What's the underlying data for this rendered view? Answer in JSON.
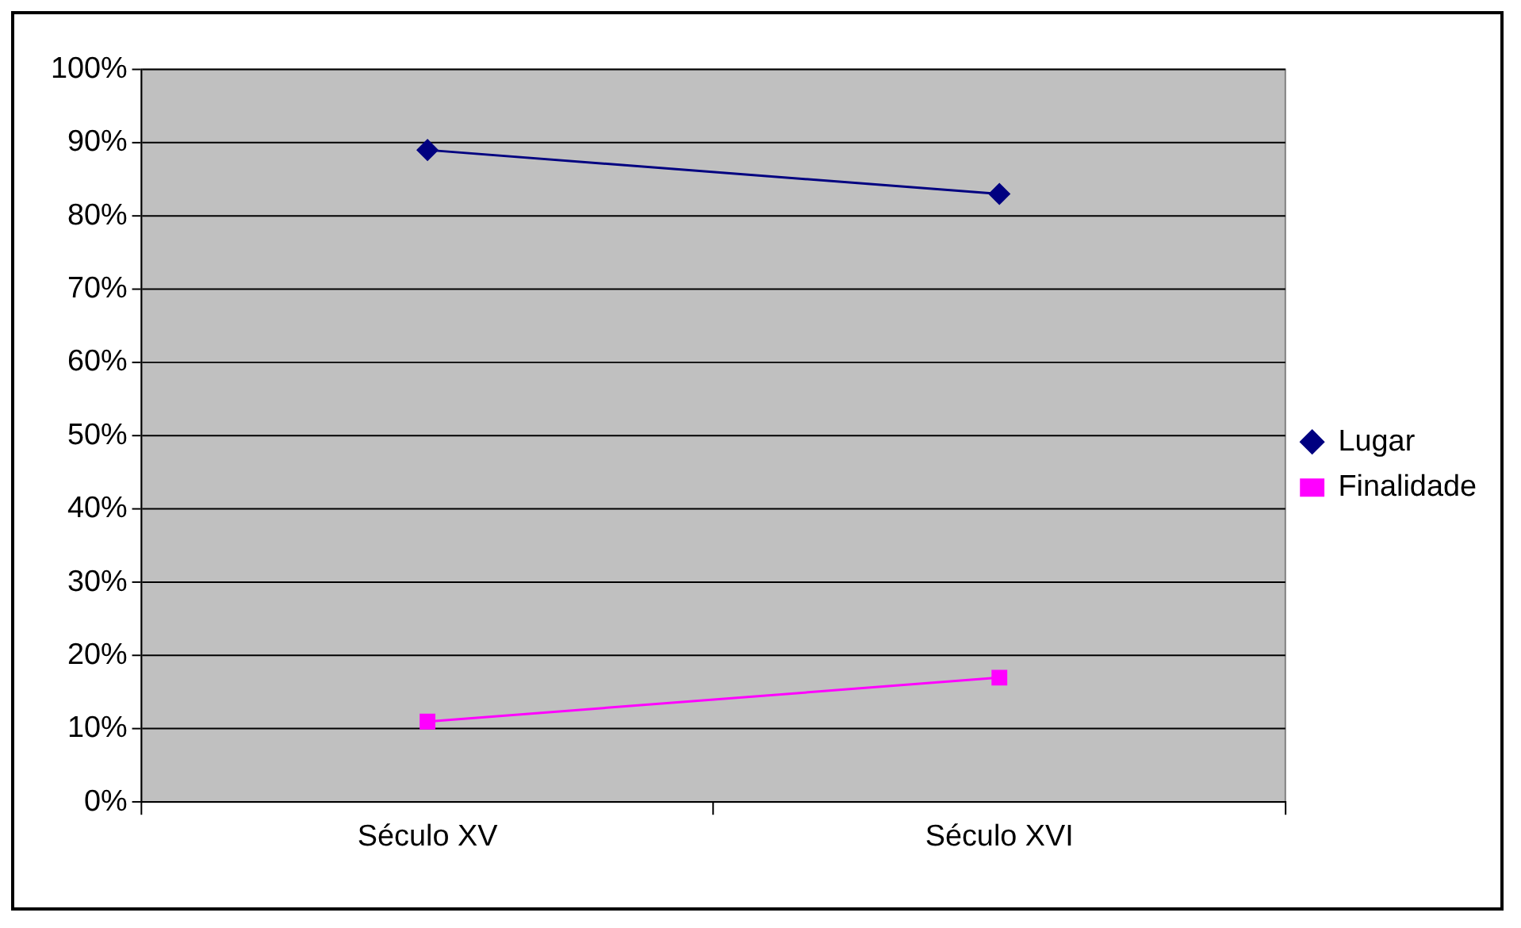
{
  "chart_data": {
    "type": "line",
    "categories": [
      "Século XV",
      "Século XVI"
    ],
    "series": [
      {
        "name": "Lugar",
        "color": "#000080",
        "values": [
          89,
          83
        ],
        "marker": "diamond"
      },
      {
        "name": "Finalidade",
        "color": "#ff00ff",
        "values": [
          11,
          17
        ],
        "marker": "square"
      }
    ],
    "ylim": [
      0,
      100
    ],
    "yticks": [
      {
        "value": 0,
        "label": "0%"
      },
      {
        "value": 10,
        "label": "10%"
      },
      {
        "value": 20,
        "label": "20%"
      },
      {
        "value": 30,
        "label": "30%"
      },
      {
        "value": 40,
        "label": "40%"
      },
      {
        "value": 50,
        "label": "50%"
      },
      {
        "value": 60,
        "label": "60%"
      },
      {
        "value": 70,
        "label": "70%"
      },
      {
        "value": 80,
        "label": "80%"
      },
      {
        "value": 90,
        "label": "90%"
      },
      {
        "value": 100,
        "label": "100%"
      }
    ],
    "grid": "y",
    "legend": "right",
    "line_style": "solid"
  }
}
